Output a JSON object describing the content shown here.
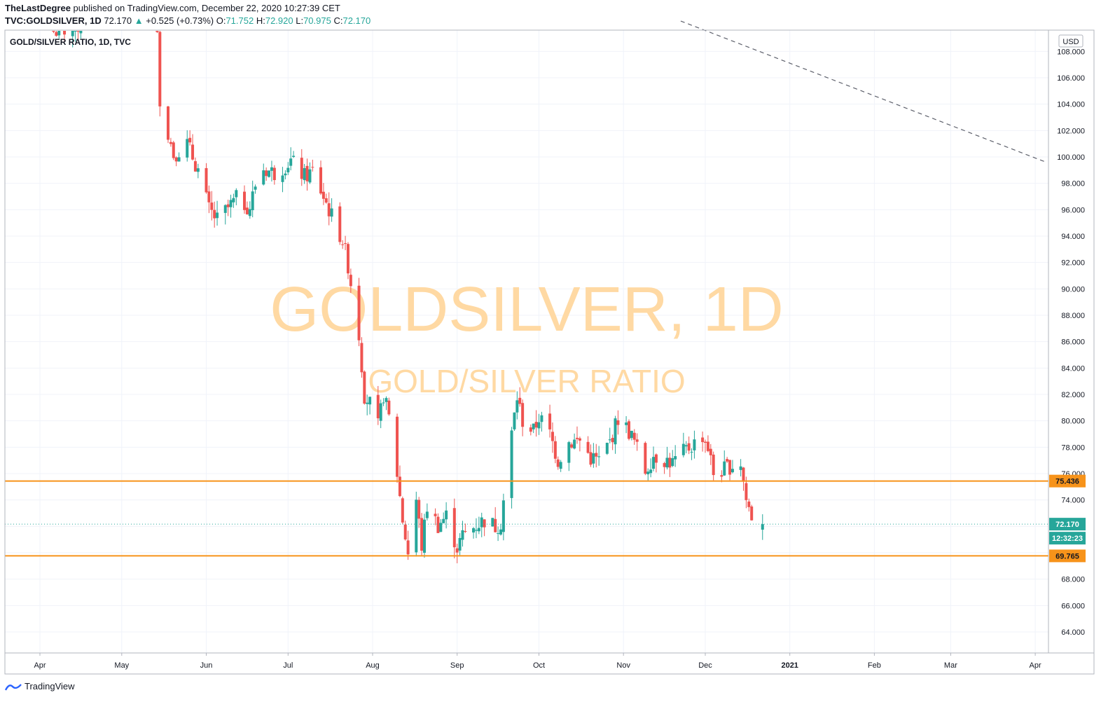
{
  "header": {
    "author": "TheLastDegree",
    "published_text": "published on TradingView.com, December 22, 2020 10:27:39 CET",
    "symbol": "TVC:GOLDSILVER, 1D",
    "last": "72.170",
    "change_arrow": "▲",
    "change": "+0.525 (+0.73%)",
    "o_label": "O:",
    "o": "71.752",
    "h_label": "H:",
    "h": "72.920",
    "l_label": "L:",
    "l": "70.975",
    "c_label": "C:",
    "c": "72.170"
  },
  "legend_title": "GOLD/SILVER RATIO, 1D, TVC",
  "watermark": {
    "line1": "GOLDSILVER, 1D",
    "line2": "GOLD/SILVER RATIO"
  },
  "currency_badge": "USD",
  "price_badges": {
    "upper_level": "75.436",
    "last_price": "72.170",
    "countdown": "12:32:23",
    "lower_level": "69.765"
  },
  "footer": {
    "brand": "TradingView"
  },
  "colors": {
    "up": "#26a69a",
    "down": "#ef5350",
    "level": "#f7931a",
    "watermark": "#ffd9a3",
    "trend": "#5d606b"
  },
  "chart_data": {
    "type": "candlestick",
    "title": "GOLD/SILVER RATIO, 1D, TVC",
    "ylim": [
      62.0,
      109.5
    ],
    "y_ticks": [
      "64.000",
      "66.000",
      "68.000",
      "70.000",
      "72.000",
      "74.000",
      "76.000",
      "78.000",
      "80.000",
      "82.000",
      "84.000",
      "86.000",
      "88.000",
      "90.000",
      "92.000",
      "94.000",
      "96.000",
      "98.000",
      "100.000",
      "102.000",
      "104.000",
      "106.000",
      "108.000"
    ],
    "x_ticks": [
      {
        "label": "Apr",
        "date": "2020-04-01"
      },
      {
        "label": "May",
        "date": "2020-05-01"
      },
      {
        "label": "Jun",
        "date": "2020-06-01"
      },
      {
        "label": "Jul",
        "date": "2020-07-01"
      },
      {
        "label": "Aug",
        "date": "2020-08-01"
      },
      {
        "label": "Sep",
        "date": "2020-09-01"
      },
      {
        "label": "Oct",
        "date": "2020-10-01"
      },
      {
        "label": "Nov",
        "date": "2020-11-01"
      },
      {
        "label": "Dec",
        "date": "2020-12-01"
      },
      {
        "label": "2021",
        "date": "2021-01-01"
      },
      {
        "label": "Feb",
        "date": "2021-02-01"
      },
      {
        "label": "Mar",
        "date": "2021-03-01"
      },
      {
        "label": "Apr",
        "date": "2021-04-01"
      }
    ],
    "levels": [
      75.436,
      69.765
    ],
    "last_price": 72.17,
    "trend_line": [
      {
        "date": "2020-11-22",
        "value": 110.3
      },
      {
        "date": "2021-04-05",
        "value": 99.6
      }
    ],
    "grid": true,
    "anchors": [
      [
        "2020-04-06",
        109.5
      ],
      [
        "2020-04-14",
        109.8
      ],
      [
        "2020-04-30",
        112.0
      ],
      [
        "2020-05-12",
        113.2
      ],
      [
        "2020-05-14",
        109.0
      ],
      [
        "2020-05-15",
        104.5
      ],
      [
        "2020-05-18",
        101.8
      ],
      [
        "2020-05-20",
        100.2
      ],
      [
        "2020-05-25",
        101.0
      ],
      [
        "2020-05-29",
        99.0
      ],
      [
        "2020-06-02",
        96.0
      ],
      [
        "2020-06-05",
        95.2
      ],
      [
        "2020-06-12",
        96.8
      ],
      [
        "2020-06-17",
        96.2
      ],
      [
        "2020-06-19",
        97.9
      ],
      [
        "2020-06-22",
        99.1
      ],
      [
        "2020-06-26",
        98.8
      ],
      [
        "2020-07-02",
        99.7
      ],
      [
        "2020-07-07",
        98.5
      ],
      [
        "2020-07-10",
        98.9
      ],
      [
        "2020-07-15",
        96.5
      ],
      [
        "2020-07-18",
        95.0
      ],
      [
        "2020-07-21",
        93.7
      ],
      [
        "2020-07-23",
        91.8
      ],
      [
        "2020-07-27",
        86.5
      ],
      [
        "2020-07-29",
        82.0
      ],
      [
        "2020-07-31",
        81.3
      ],
      [
        "2020-08-03",
        79.5
      ],
      [
        "2020-08-05",
        82.0
      ],
      [
        "2020-08-07",
        80.2
      ],
      [
        "2020-08-10",
        76.0
      ],
      [
        "2020-08-12",
        72.5
      ],
      [
        "2020-08-14",
        70.0
      ],
      [
        "2020-08-17",
        74.0
      ],
      [
        "2020-08-19",
        70.5
      ],
      [
        "2020-08-21",
        73.5
      ],
      [
        "2020-08-25",
        72.1
      ],
      [
        "2020-08-28",
        72.8
      ],
      [
        "2020-09-01",
        70.4
      ],
      [
        "2020-09-03",
        71.3
      ],
      [
        "2020-09-08",
        72.1
      ],
      [
        "2020-09-11",
        72.5
      ],
      [
        "2020-09-15",
        72.0
      ],
      [
        "2020-09-17",
        72.3
      ],
      [
        "2020-09-21",
        79.0
      ],
      [
        "2020-09-23",
        81.8
      ],
      [
        "2020-09-25",
        80.0
      ],
      [
        "2020-09-29",
        79.2
      ],
      [
        "2020-10-01",
        80.3
      ],
      [
        "2020-10-05",
        79.0
      ],
      [
        "2020-10-08",
        77.0
      ],
      [
        "2020-10-12",
        78.4
      ],
      [
        "2020-10-16",
        78.5
      ],
      [
        "2020-10-20",
        77.2
      ],
      [
        "2020-10-23",
        77.0
      ],
      [
        "2020-10-27",
        78.4
      ],
      [
        "2020-10-30",
        80.2
      ],
      [
        "2020-11-03",
        79.2
      ],
      [
        "2020-11-05",
        78.4
      ],
      [
        "2020-11-09",
        76.2
      ],
      [
        "2020-11-12",
        77.4
      ],
      [
        "2020-11-16",
        77.1
      ],
      [
        "2020-11-19",
        76.8
      ],
      [
        "2020-11-24",
        77.8
      ],
      [
        "2020-11-27",
        78.3
      ],
      [
        "2020-11-30",
        78.9
      ],
      [
        "2020-12-02",
        78.0
      ],
      [
        "2020-12-04",
        76.0
      ],
      [
        "2020-12-08",
        76.3
      ],
      [
        "2020-12-10",
        76.6
      ],
      [
        "2020-12-14",
        76.8
      ],
      [
        "2020-12-16",
        74.0
      ],
      [
        "2020-12-18",
        72.8
      ],
      [
        "2020-12-21",
        71.75
      ]
    ],
    "last_candle": {
      "date": "2020-12-22",
      "open": 71.752,
      "high": 72.92,
      "low": 70.975,
      "close": 72.17
    }
  }
}
